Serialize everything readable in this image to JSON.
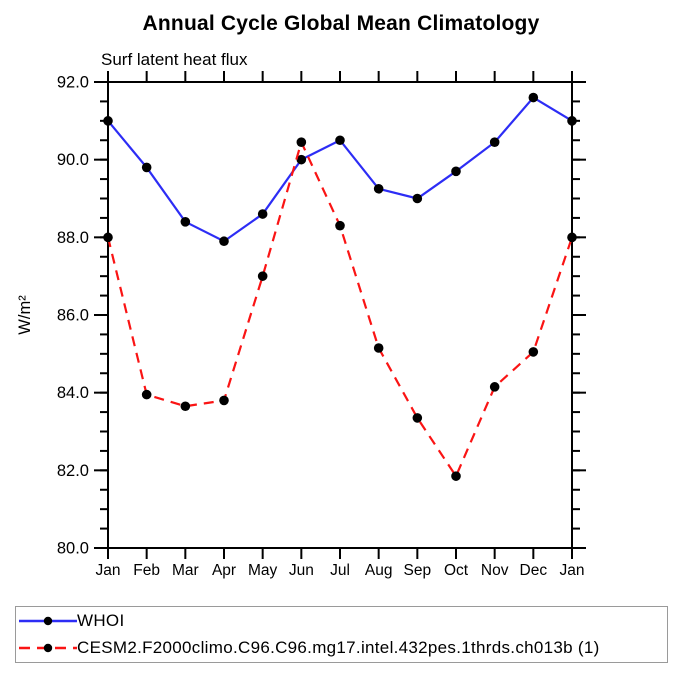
{
  "page": {
    "background": "#ffffff"
  },
  "chart_data": {
    "type": "line",
    "title": "Annual Cycle Global Mean Climatology",
    "subtitle": "Surf latent heat flux",
    "ylabel": "W/m²",
    "xlabel": "",
    "categories": [
      "Jan",
      "Feb",
      "Mar",
      "Apr",
      "May",
      "Jun",
      "Jul",
      "Aug",
      "Sep",
      "Oct",
      "Nov",
      "Dec",
      "Jan"
    ],
    "ylim": [
      80.0,
      92.0
    ],
    "ytick_interval": 2.0,
    "yminor_interval": 0.5,
    "ytick_labels": [
      "92.0",
      "90.0",
      "88.0",
      "86.0",
      "84.0",
      "82.0",
      "80.0"
    ],
    "grid": false,
    "tick_direction": "out",
    "axis_color": "#000000",
    "marker_color": "#000000",
    "legend_position": "bottom-left-box",
    "legend_border_color": "#9a9a9a",
    "series": [
      {
        "name": "WHOI",
        "color": "#2d2df5",
        "style": "solid",
        "marker": "filled-circle",
        "values": [
          91.0,
          89.8,
          88.4,
          87.9,
          88.6,
          90.0,
          90.5,
          89.25,
          89.0,
          89.7,
          90.45,
          91.6,
          91.0
        ]
      },
      {
        "name": "CESM2.F2000climo.C96.C96.mg17.intel.432pes.1thrds.ch013b (1)",
        "color": "#fa1414",
        "style": "dashed",
        "marker": "filled-circle",
        "values": [
          88.0,
          83.95,
          83.65,
          83.8,
          87.0,
          90.45,
          88.3,
          85.15,
          83.35,
          81.85,
          84.15,
          85.05,
          88.0
        ]
      }
    ]
  }
}
